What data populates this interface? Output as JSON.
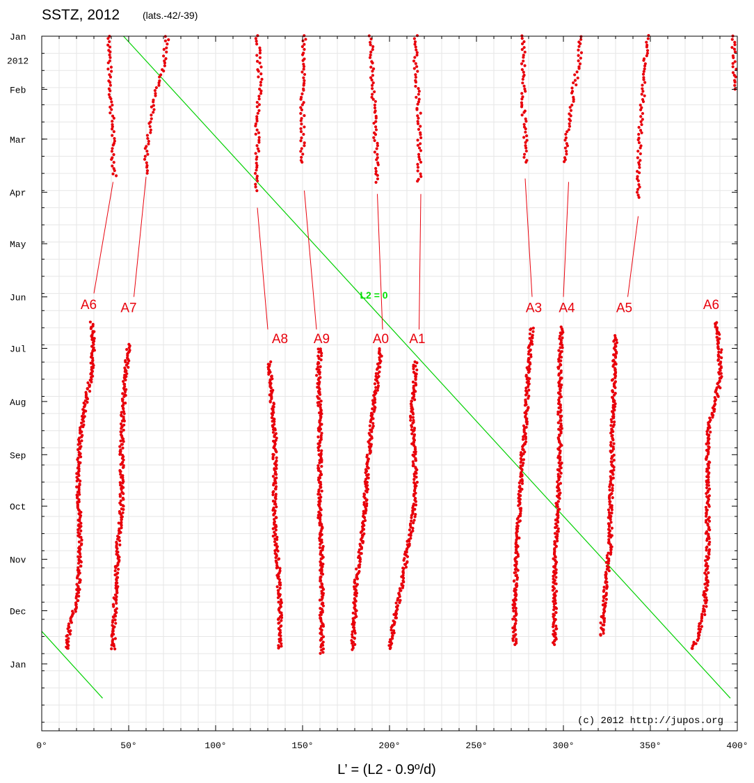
{
  "chart_data": {
    "type": "scatter",
    "title": "SSTZ, 2012",
    "subtitle": "(lats.-42/-39)",
    "xlabel": "L’ = (L2 - 0.9º/d)",
    "credit": "(c) 2012 http://jupos.org",
    "xlim": [
      0,
      400
    ],
    "x_ticks": [
      {
        "value": 0,
        "label": "0°"
      },
      {
        "value": 50,
        "label": "50°"
      },
      {
        "value": 100,
        "label": "100°"
      },
      {
        "value": 150,
        "label": "150°"
      },
      {
        "value": 200,
        "label": "200°"
      },
      {
        "value": 250,
        "label": "250°"
      },
      {
        "value": 300,
        "label": "300°"
      },
      {
        "value": 350,
        "label": "350°"
      },
      {
        "value": 400,
        "label": "400°"
      }
    ],
    "y_axis_unit": "days since 2012 Jan 1",
    "ylim": [
      0,
      405
    ],
    "y_ticks": [
      {
        "value": 0,
        "label": "Jan"
      },
      {
        "value": 31,
        "label": "Feb"
      },
      {
        "value": 60,
        "label": "Mar"
      },
      {
        "value": 91,
        "label": "Apr"
      },
      {
        "value": 121,
        "label": "May"
      },
      {
        "value": 152,
        "label": "Jun"
      },
      {
        "value": 182,
        "label": "Jul"
      },
      {
        "value": 213,
        "label": "Aug"
      },
      {
        "value": 244,
        "label": "Sep"
      },
      {
        "value": 274,
        "label": "Oct"
      },
      {
        "value": 305,
        "label": "Nov"
      },
      {
        "value": 335,
        "label": "Dec"
      },
      {
        "value": 366,
        "label": "Jan"
      }
    ],
    "year_label": {
      "value": 14,
      "label": "2012"
    },
    "grid": true,
    "colors": {
      "spots": "#e8000b",
      "other": "#000000",
      "reference_line": "#00d000",
      "grid": "#e6e6e6"
    },
    "reference_line": {
      "label": "L2 = 0",
      "label_at": [
        185,
        153
      ],
      "segments": [
        [
          [
            47,
            0
          ],
          [
            396,
            386
          ]
        ],
        [
          [
            0,
            347
          ],
          [
            35,
            386
          ]
        ]
      ]
    },
    "tracks": [
      {
        "name": "A6",
        "color": "#e8000b",
        "early": [
          [
            39,
            0
          ],
          [
            39,
            20
          ],
          [
            40,
            40
          ],
          [
            41,
            55
          ],
          [
            41,
            70
          ],
          [
            42,
            82
          ]
        ],
        "late": [
          [
            29,
            167
          ],
          [
            30,
            182
          ],
          [
            28,
            200
          ],
          [
            25,
            215
          ],
          [
            22,
            235
          ],
          [
            21,
            260
          ],
          [
            22,
            285
          ],
          [
            22,
            310
          ],
          [
            20,
            330
          ],
          [
            16,
            345
          ],
          [
            14,
            358
          ]
        ]
      },
      {
        "name": "A7",
        "color": "#e8000b",
        "early": [
          [
            72,
            0
          ],
          [
            71,
            10
          ],
          [
            70,
            20
          ],
          [
            67,
            28
          ],
          [
            64,
            40
          ],
          [
            62,
            55
          ],
          [
            60,
            70
          ],
          [
            60,
            80
          ]
        ],
        "late": [
          [
            50,
            180
          ],
          [
            48,
            200
          ],
          [
            47,
            215
          ],
          [
            46,
            235
          ],
          [
            46,
            255
          ],
          [
            46,
            275
          ],
          [
            44,
            295
          ],
          [
            43,
            315
          ],
          [
            42,
            335
          ],
          [
            41,
            358
          ]
        ]
      },
      {
        "name": "A8",
        "color": "#e8000b",
        "early": [
          [
            124,
            0
          ],
          [
            125,
            15
          ],
          [
            126,
            30
          ],
          [
            124,
            45
          ],
          [
            124,
            60
          ],
          [
            124,
            75
          ],
          [
            123,
            90
          ]
        ],
        "late": [
          [
            131,
            190
          ],
          [
            132,
            210
          ],
          [
            134,
            230
          ],
          [
            134,
            250
          ],
          [
            134,
            270
          ],
          [
            134,
            290
          ],
          [
            136,
            310
          ],
          [
            137,
            330
          ],
          [
            137,
            350
          ],
          [
            137,
            358
          ]
        ]
      },
      {
        "name": "A9",
        "color": "#e8000b",
        "early": [
          [
            151,
            0
          ],
          [
            151,
            15
          ],
          [
            150,
            30
          ],
          [
            150,
            45
          ],
          [
            150,
            60
          ],
          [
            150,
            75
          ]
        ],
        "late": [
          [
            160,
            182
          ],
          [
            159,
            200
          ],
          [
            160,
            220
          ],
          [
            160,
            240
          ],
          [
            160,
            260
          ],
          [
            160,
            280
          ],
          [
            161,
            300
          ],
          [
            161,
            320
          ],
          [
            161,
            340
          ],
          [
            161,
            360
          ]
        ]
      },
      {
        "name": "A0",
        "color": "#e8000b",
        "early": [
          [
            189,
            0
          ],
          [
            190,
            15
          ],
          [
            190,
            30
          ],
          [
            192,
            45
          ],
          [
            192,
            60
          ],
          [
            193,
            75
          ],
          [
            193,
            85
          ]
        ],
        "late": [
          [
            195,
            182
          ],
          [
            193,
            200
          ],
          [
            191,
            215
          ],
          [
            189,
            235
          ],
          [
            187,
            255
          ],
          [
            186,
            275
          ],
          [
            184,
            295
          ],
          [
            181,
            315
          ],
          [
            180,
            335
          ],
          [
            179,
            358
          ]
        ]
      },
      {
        "name": "A1",
        "color": "#e8000b",
        "early": [
          [
            215,
            0
          ],
          [
            215,
            15
          ],
          [
            216,
            30
          ],
          [
            217,
            45
          ],
          [
            217,
            60
          ],
          [
            217,
            75
          ],
          [
            217,
            85
          ]
        ],
        "late": [
          [
            215,
            190
          ],
          [
            214,
            205
          ],
          [
            213,
            220
          ],
          [
            214,
            240
          ],
          [
            215,
            260
          ],
          [
            215,
            270
          ],
          [
            213,
            285
          ],
          [
            210,
            300
          ],
          [
            207,
            320
          ],
          [
            203,
            340
          ],
          [
            200,
            358
          ]
        ]
      },
      {
        "name": "A3",
        "color": "#e8000b",
        "early": [
          [
            277,
            0
          ],
          [
            277,
            20
          ],
          [
            277,
            40
          ],
          [
            278,
            60
          ],
          [
            278,
            75
          ]
        ],
        "late": [
          [
            282,
            170
          ],
          [
            280,
            190
          ],
          [
            279,
            210
          ],
          [
            278,
            230
          ],
          [
            276,
            250
          ],
          [
            275,
            270
          ],
          [
            274,
            290
          ],
          [
            273,
            310
          ],
          [
            272,
            330
          ],
          [
            272,
            355
          ]
        ]
      },
      {
        "name": "A4",
        "color": "#e8000b",
        "early": [
          [
            310,
            0
          ],
          [
            309,
            15
          ],
          [
            306,
            30
          ],
          [
            304,
            45
          ],
          [
            302,
            60
          ],
          [
            301,
            75
          ]
        ],
        "late": [
          [
            299,
            170
          ],
          [
            298,
            190
          ],
          [
            298,
            210
          ],
          [
            298,
            230
          ],
          [
            298,
            250
          ],
          [
            297,
            270
          ],
          [
            296,
            290
          ],
          [
            295,
            310
          ],
          [
            295,
            330
          ],
          [
            295,
            355
          ]
        ]
      },
      {
        "name": "A5",
        "color": "#e8000b",
        "early": [
          [
            348,
            0
          ],
          [
            347,
            15
          ],
          [
            346,
            30
          ],
          [
            345,
            45
          ],
          [
            344,
            60
          ],
          [
            343,
            75
          ],
          [
            343,
            95
          ]
        ],
        "late": [
          [
            330,
            175
          ],
          [
            329,
            195
          ],
          [
            329,
            215
          ],
          [
            328,
            235
          ],
          [
            328,
            255
          ],
          [
            327,
            275
          ],
          [
            327,
            295
          ],
          [
            325,
            315
          ],
          [
            323,
            335
          ],
          [
            322,
            350
          ]
        ]
      },
      {
        "name": "A6",
        "color": "#e8000b",
        "early": [
          [
            398,
            0
          ],
          [
            398,
            15
          ],
          [
            399,
            30
          ],
          [
            400,
            32
          ]
        ],
        "late": [
          [
            388,
            167
          ],
          [
            390,
            182
          ],
          [
            390,
            200
          ],
          [
            387,
            215
          ],
          [
            384,
            225
          ],
          [
            383,
            240
          ],
          [
            383,
            260
          ],
          [
            383,
            280
          ],
          [
            383,
            300
          ],
          [
            382,
            320
          ],
          [
            381,
            335
          ],
          [
            378,
            348
          ],
          [
            374,
            358
          ]
        ]
      }
    ],
    "annotations": [
      {
        "text": "A6",
        "label_at": [
          27,
          159
        ],
        "pointer_from": [
          30,
          150
        ],
        "pointer_to": [
          41,
          85
        ]
      },
      {
        "text": "A7",
        "label_at": [
          50,
          161
        ],
        "pointer_from": [
          53,
          152
        ],
        "pointer_to": [
          60,
          82
        ]
      },
      {
        "text": "A8",
        "label_at": [
          137,
          179
        ],
        "pointer_from": [
          130,
          171
        ],
        "pointer_to": [
          124,
          100
        ]
      },
      {
        "text": "A9",
        "label_at": [
          161,
          179
        ],
        "pointer_from": [
          158,
          171
        ],
        "pointer_to": [
          151,
          90
        ]
      },
      {
        "text": "A0",
        "label_at": [
          195,
          179
        ],
        "pointer_from": [
          196,
          171
        ],
        "pointer_to": [
          193,
          92
        ]
      },
      {
        "text": "A1",
        "label_at": [
          216,
          179
        ],
        "pointer_from": [
          217,
          171
        ],
        "pointer_to": [
          218,
          92
        ]
      },
      {
        "text": "A3",
        "label_at": [
          283,
          161
        ],
        "pointer_from": [
          282,
          152
        ],
        "pointer_to": [
          278,
          83
        ]
      },
      {
        "text": "A4",
        "label_at": [
          302,
          161
        ],
        "pointer_from": [
          300,
          152
        ],
        "pointer_to": [
          303,
          85
        ]
      },
      {
        "text": "A5",
        "label_at": [
          335,
          161
        ],
        "pointer_from": [
          337,
          152
        ],
        "pointer_to": [
          343,
          105
        ]
      },
      {
        "text": "A6",
        "label_at": [
          385,
          159
        ],
        "pointer_from": [
          0,
          0
        ],
        "pointer_to": [
          0,
          0
        ]
      }
    ]
  }
}
